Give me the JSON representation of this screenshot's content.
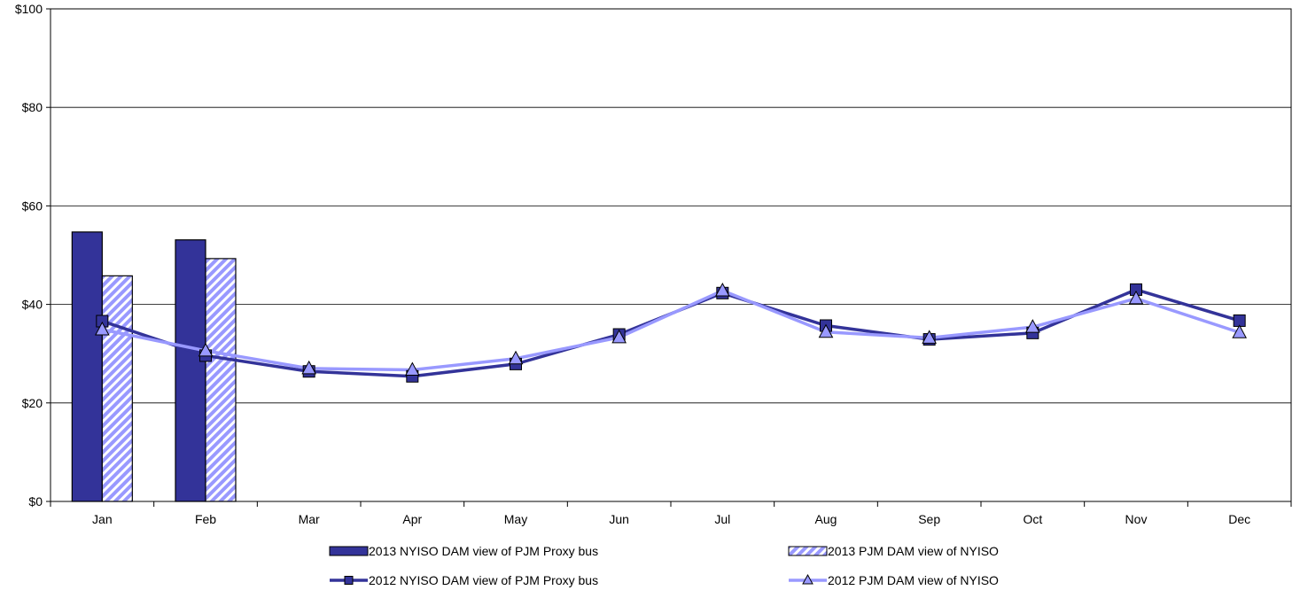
{
  "chart_data": {
    "type": "bar",
    "categories": [
      "Jan",
      "Feb",
      "Mar",
      "Apr",
      "May",
      "Jun",
      "Jul",
      "Aug",
      "Sep",
      "Oct",
      "Nov",
      "Dec"
    ],
    "y_ticks": [
      "$0",
      "$20",
      "$40",
      "$60",
      "$80",
      "$100"
    ],
    "ylim": [
      0,
      100
    ],
    "grid": true,
    "legend_position": "bottom",
    "series": [
      {
        "name": "2013 NYISO DAM view of PJM Proxy bus",
        "kind": "bar",
        "style": "solid",
        "color": "#333399",
        "values": [
          54.7,
          53.1,
          null,
          null,
          null,
          null,
          null,
          null,
          null,
          null,
          null,
          null
        ]
      },
      {
        "name": "2013 PJM DAM view of NYISO",
        "kind": "bar",
        "style": "hatched",
        "color": "#9999ff",
        "values": [
          45.8,
          49.3,
          null,
          null,
          null,
          null,
          null,
          null,
          null,
          null,
          null,
          null
        ]
      },
      {
        "name": "2012 NYISO DAM view of PJM Proxy bus",
        "kind": "line",
        "marker": "square",
        "color": "#333399",
        "values": [
          36.6,
          29.6,
          26.4,
          25.4,
          27.9,
          33.9,
          42.3,
          35.7,
          32.9,
          34.2,
          43.0,
          36.7
        ]
      },
      {
        "name": "2012 PJM DAM view of NYISO",
        "kind": "line",
        "marker": "triangle",
        "color": "#9999ff",
        "values": [
          34.9,
          30.6,
          27.0,
          26.7,
          29.0,
          33.3,
          42.8,
          34.4,
          33.2,
          35.4,
          41.2,
          34.3
        ]
      }
    ]
  }
}
